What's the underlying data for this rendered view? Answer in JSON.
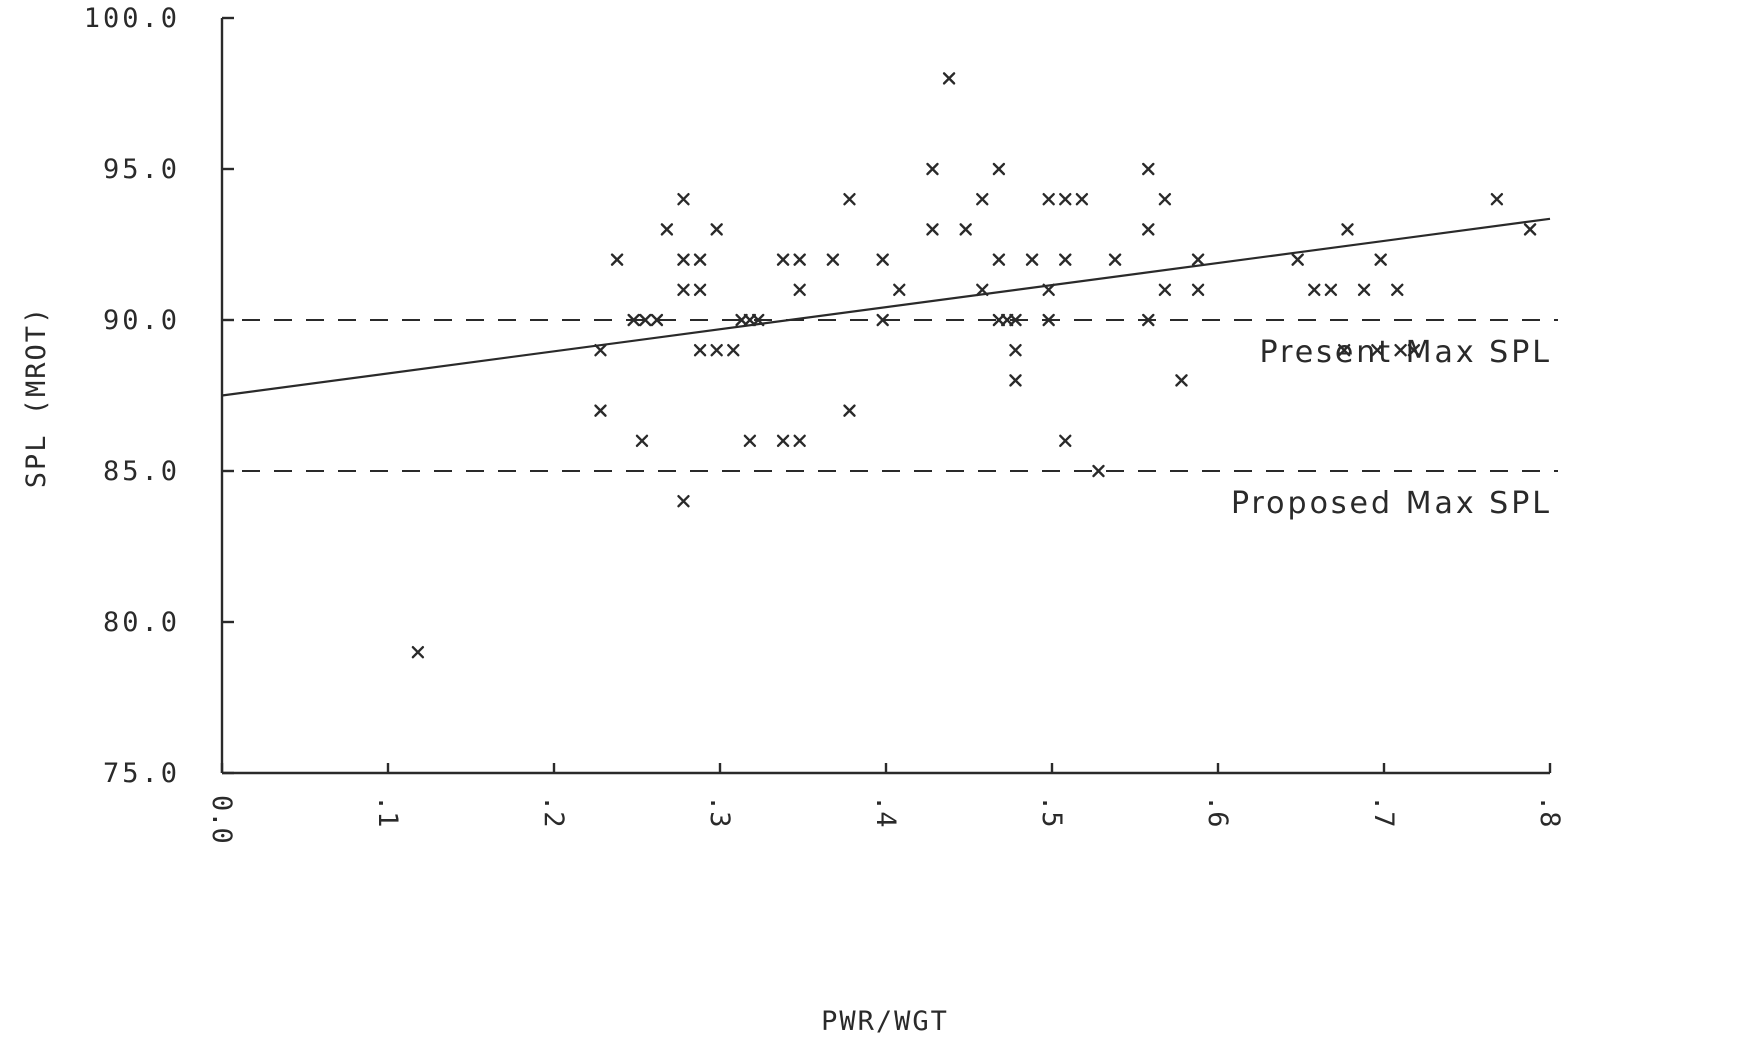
{
  "chart_data": {
    "type": "scatter",
    "title": "",
    "xlabel": "PWR/WGT",
    "ylabel": "SPL (MROT)",
    "xlim": [
      0.0,
      0.8
    ],
    "ylim": [
      75.0,
      100.0
    ],
    "x_ticks": [
      0.0,
      0.1,
      0.2,
      0.3,
      0.4,
      0.5,
      0.6,
      0.7,
      0.8
    ],
    "x_tick_labels": [
      "0.0",
      ".1",
      ".2",
      ".3",
      ".4",
      ".5",
      ".6",
      ".7",
      ".8"
    ],
    "y_ticks": [
      75.0,
      80.0,
      85.0,
      90.0,
      95.0,
      100.0
    ],
    "y_tick_labels": [
      "75.0",
      "80.0",
      "85.0",
      "90.0",
      "95.0",
      "100.0"
    ],
    "grid": false,
    "marker": "x",
    "points": [
      {
        "x": 0.118,
        "y": 79
      },
      {
        "x": 0.228,
        "y": 89
      },
      {
        "x": 0.228,
        "y": 87
      },
      {
        "x": 0.238,
        "y": 92
      },
      {
        "x": 0.248,
        "y": 90
      },
      {
        "x": 0.255,
        "y": 90
      },
      {
        "x": 0.262,
        "y": 90
      },
      {
        "x": 0.253,
        "y": 86
      },
      {
        "x": 0.268,
        "y": 93
      },
      {
        "x": 0.278,
        "y": 94
      },
      {
        "x": 0.278,
        "y": 92
      },
      {
        "x": 0.278,
        "y": 91
      },
      {
        "x": 0.288,
        "y": 92
      },
      {
        "x": 0.288,
        "y": 91
      },
      {
        "x": 0.278,
        "y": 84
      },
      {
        "x": 0.288,
        "y": 89
      },
      {
        "x": 0.298,
        "y": 89
      },
      {
        "x": 0.308,
        "y": 89
      },
      {
        "x": 0.298,
        "y": 93
      },
      {
        "x": 0.313,
        "y": 90
      },
      {
        "x": 0.318,
        "y": 90
      },
      {
        "x": 0.318,
        "y": 86
      },
      {
        "x": 0.323,
        "y": 90
      },
      {
        "x": 0.338,
        "y": 92
      },
      {
        "x": 0.348,
        "y": 92
      },
      {
        "x": 0.348,
        "y": 91
      },
      {
        "x": 0.338,
        "y": 86
      },
      {
        "x": 0.348,
        "y": 86
      },
      {
        "x": 0.368,
        "y": 92
      },
      {
        "x": 0.378,
        "y": 94
      },
      {
        "x": 0.378,
        "y": 87
      },
      {
        "x": 0.398,
        "y": 92
      },
      {
        "x": 0.398,
        "y": 90
      },
      {
        "x": 0.408,
        "y": 91
      },
      {
        "x": 0.428,
        "y": 95
      },
      {
        "x": 0.428,
        "y": 93
      },
      {
        "x": 0.438,
        "y": 98
      },
      {
        "x": 0.448,
        "y": 93
      },
      {
        "x": 0.458,
        "y": 94
      },
      {
        "x": 0.458,
        "y": 91
      },
      {
        "x": 0.468,
        "y": 95
      },
      {
        "x": 0.468,
        "y": 92
      },
      {
        "x": 0.468,
        "y": 90
      },
      {
        "x": 0.473,
        "y": 90
      },
      {
        "x": 0.478,
        "y": 90
      },
      {
        "x": 0.478,
        "y": 89
      },
      {
        "x": 0.478,
        "y": 88
      },
      {
        "x": 0.488,
        "y": 92
      },
      {
        "x": 0.498,
        "y": 94
      },
      {
        "x": 0.498,
        "y": 91
      },
      {
        "x": 0.498,
        "y": 90
      },
      {
        "x": 0.508,
        "y": 94
      },
      {
        "x": 0.508,
        "y": 92
      },
      {
        "x": 0.518,
        "y": 94
      },
      {
        "x": 0.508,
        "y": 86
      },
      {
        "x": 0.528,
        "y": 85
      },
      {
        "x": 0.538,
        "y": 92
      },
      {
        "x": 0.558,
        "y": 95
      },
      {
        "x": 0.558,
        "y": 93
      },
      {
        "x": 0.558,
        "y": 90
      },
      {
        "x": 0.568,
        "y": 94
      },
      {
        "x": 0.568,
        "y": 91
      },
      {
        "x": 0.578,
        "y": 88
      },
      {
        "x": 0.588,
        "y": 92
      },
      {
        "x": 0.588,
        "y": 91
      },
      {
        "x": 0.648,
        "y": 92
      },
      {
        "x": 0.658,
        "y": 91
      },
      {
        "x": 0.668,
        "y": 91
      },
      {
        "x": 0.678,
        "y": 93
      },
      {
        "x": 0.688,
        "y": 91
      },
      {
        "x": 0.698,
        "y": 92
      },
      {
        "x": 0.708,
        "y": 91
      },
      {
        "x": 0.676,
        "y": 89
      },
      {
        "x": 0.696,
        "y": 89
      },
      {
        "x": 0.71,
        "y": 89
      },
      {
        "x": 0.718,
        "y": 89
      },
      {
        "x": 0.768,
        "y": 94
      },
      {
        "x": 0.788,
        "y": 93
      }
    ],
    "regression_line": {
      "x": [
        0.0,
        0.8
      ],
      "y": [
        87.5,
        93.35
      ]
    },
    "reference_lines": [
      {
        "y": 90.0,
        "label": "Present Max SPL",
        "style": "dashed"
      },
      {
        "y": 85.0,
        "label": "Proposed Max SPL",
        "style": "dashed"
      }
    ]
  }
}
